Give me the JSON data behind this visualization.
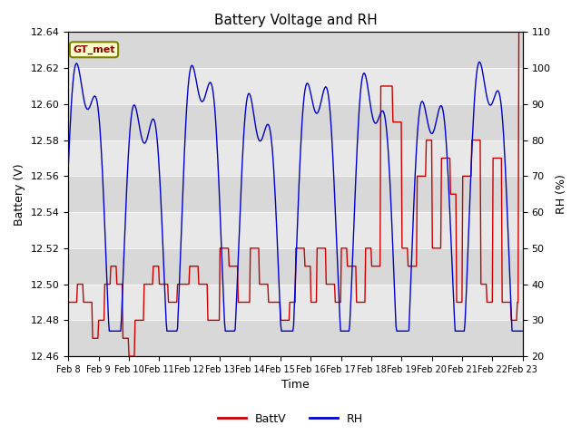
{
  "title": "Battery Voltage and RH",
  "xlabel": "Time",
  "ylabel_left": "Battery (V)",
  "ylabel_right": "RH (%)",
  "station_label": "GT_met",
  "x_tick_labels": [
    "Feb 8",
    "Feb 9",
    "Feb 10",
    "Feb 11",
    "Feb 12",
    "Feb 13",
    "Feb 14",
    "Feb 15",
    "Feb 16",
    "Feb 17",
    "Feb 18",
    "Feb 19",
    "Feb 20",
    "Feb 21",
    "Feb 22",
    "Feb 23"
  ],
  "batt_ylim": [
    12.46,
    12.64
  ],
  "rh_ylim": [
    20,
    110
  ],
  "batt_yticks": [
    12.46,
    12.48,
    12.5,
    12.52,
    12.54,
    12.56,
    12.58,
    12.6,
    12.62,
    12.64
  ],
  "rh_yticks": [
    20,
    30,
    40,
    50,
    60,
    70,
    80,
    90,
    100,
    110
  ],
  "batt_color": "#cc0000",
  "rh_color": "#0000cc",
  "bg_color": "#ffffff",
  "plot_bg_color": "#f0f0f0",
  "band_light": "#e8e8e8",
  "band_dark": "#d8d8d8",
  "legend_entries": [
    "BattV",
    "RH"
  ],
  "legend_colors": [
    "#cc0000",
    "#0000cc"
  ],
  "figsize": [
    6.4,
    4.8
  ],
  "dpi": 100
}
